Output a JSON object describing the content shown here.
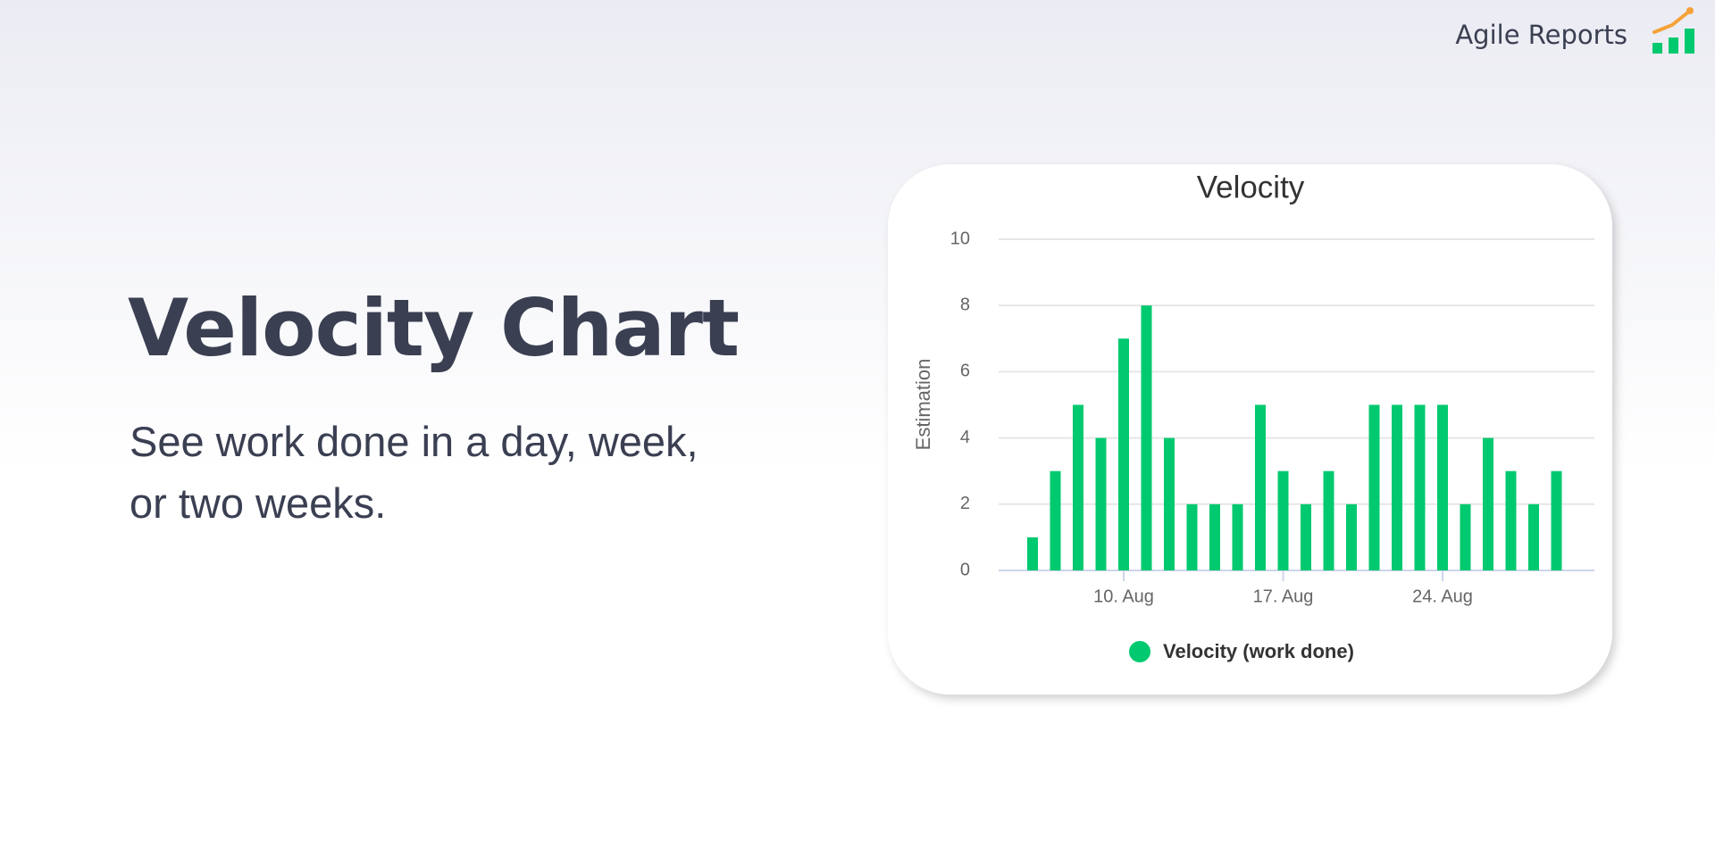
{
  "header": {
    "brand": "Agile Reports"
  },
  "hero": {
    "title": "Velocity Chart",
    "subtitle": "See work done in a day, week, or two weeks."
  },
  "chart_data": {
    "type": "bar",
    "title": "Velocity",
    "y_label": "Estimation",
    "categories": [
      null,
      null,
      null,
      null,
      "10. Aug",
      null,
      null,
      null,
      null,
      null,
      null,
      "17. Aug",
      null,
      null,
      null,
      null,
      null,
      null,
      "24. Aug",
      null,
      null,
      null,
      null,
      null
    ],
    "series": [
      {
        "name": "Velocity (work done)",
        "color": "#00c96f",
        "values": [
          1,
          3,
          5,
          4,
          7,
          8,
          4,
          2,
          2,
          2,
          5,
          3,
          2,
          3,
          2,
          5,
          5,
          5,
          5,
          2,
          4,
          3,
          2,
          3
        ]
      }
    ],
    "ylim": [
      0,
      10
    ],
    "yticks": [
      0,
      2,
      4,
      6,
      8,
      10
    ],
    "grid": true,
    "legend": "bottom"
  }
}
